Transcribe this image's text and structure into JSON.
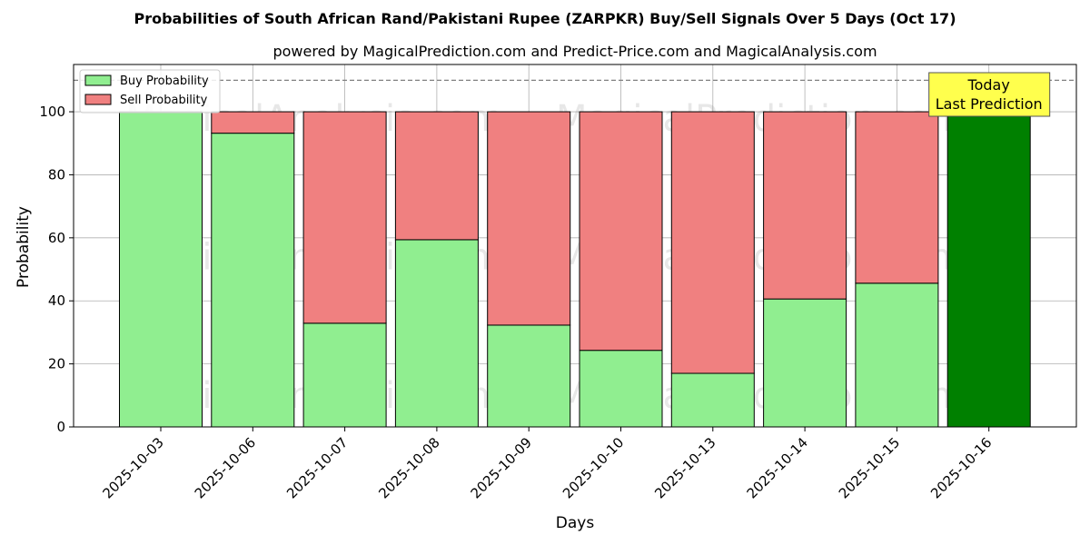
{
  "chart_data": {
    "type": "bar",
    "title": "Probabilities of South African Rand/Pakistani Rupee (ZARPKR) Buy/Sell Signals Over 5 Days (Oct 17)",
    "subtitle": "powered by MagicalPrediction.com and Predict-Price.com and MagicalAnalysis.com",
    "xlabel": "Days",
    "ylabel": "Probability",
    "ylim": [
      0,
      115
    ],
    "yticks": [
      0,
      20,
      40,
      60,
      80,
      100
    ],
    "reference_line": 110,
    "grid": true,
    "stacked": true,
    "legend_position": "top-left",
    "categories": [
      "2025-10-03",
      "2025-10-06",
      "2025-10-07",
      "2025-10-08",
      "2025-10-09",
      "2025-10-10",
      "2025-10-13",
      "2025-10-14",
      "2025-10-15",
      "2025-10-16"
    ],
    "series": [
      {
        "name": "Buy Probability",
        "color": "#90ee90",
        "values": [
          100,
          93.2,
          32.9,
          59.4,
          32.3,
          24.3,
          17.0,
          40.6,
          45.6,
          100
        ]
      },
      {
        "name": "Sell Probability",
        "color": "#f08080",
        "values": [
          0,
          6.8,
          67.1,
          40.6,
          67.7,
          75.7,
          83.0,
          59.4,
          54.4,
          0
        ]
      }
    ],
    "highlight": {
      "index": 9,
      "color": "#008000"
    },
    "annotation": {
      "line1": "Today",
      "line2": "Last Prediction",
      "color": "#ffff4d"
    },
    "watermarks": [
      "MagicalAnalysis.com",
      "MagicalPrediction.com"
    ]
  }
}
